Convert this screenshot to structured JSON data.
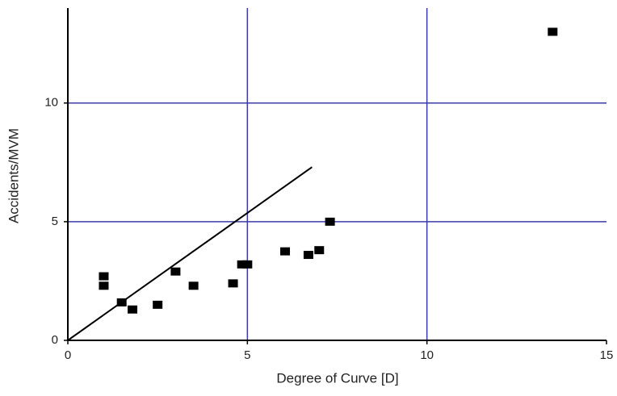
{
  "chart_data": {
    "type": "scatter",
    "x_label": "Degree of Curve [D]",
    "y_label": "Accidents/MVM",
    "xlim": [
      0,
      15
    ],
    "xticks": [
      0,
      5,
      10,
      15
    ],
    "ylim": [
      0,
      14
    ],
    "yticks": [
      0,
      5,
      10
    ],
    "grid": true,
    "grid_color": "#3b3ba8",
    "series": [
      {
        "type": "scatter",
        "color": "#000000",
        "x": [
          1,
          1,
          1.5,
          1.8,
          2.5,
          3,
          3.5,
          4.6,
          4.85,
          5,
          6.05,
          6.7,
          7,
          7.3,
          13.5
        ],
        "values": [
          2.7,
          2.3,
          1.6,
          1.3,
          1.5,
          2.9,
          2.3,
          2.4,
          3.2,
          3.2,
          3.75,
          3.6,
          3.8,
          5,
          13
        ]
      },
      {
        "type": "line",
        "color": "#000000",
        "x": [
          0,
          6.8
        ],
        "values": [
          0,
          7.3
        ]
      }
    ]
  }
}
